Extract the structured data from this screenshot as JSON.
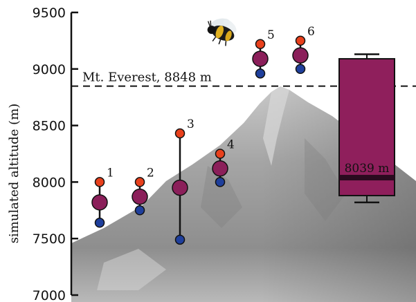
{
  "chart_data": {
    "type": "scatter",
    "title": "",
    "ylabel": "simulated altitude (m)",
    "xlabel": "",
    "ylim": [
      7000,
      9500
    ],
    "yticks": [
      7000,
      7500,
      8000,
      8500,
      9000,
      9500
    ],
    "grid": false,
    "reference_line": {
      "label": "Mt. Everest, 8848 m",
      "value": 8848
    },
    "series": [
      {
        "label": "1",
        "min": 7640,
        "mean": 7820,
        "max": 8000
      },
      {
        "label": "2",
        "min": 7750,
        "mean": 7870,
        "max": 8000
      },
      {
        "label": "3",
        "min": 7490,
        "mean": 7950,
        "max": 8430
      },
      {
        "label": "4",
        "min": 8000,
        "mean": 8120,
        "max": 8250
      },
      {
        "label": "5",
        "min": 8960,
        "mean": 9090,
        "max": 9220
      },
      {
        "label": "6",
        "min": 9000,
        "mean": 9120,
        "max": 9250
      }
    ],
    "boxplot": {
      "median": 8039,
      "median_label": "8039 m",
      "q1": 7880,
      "q3": 9090,
      "whisker_low": 7820,
      "whisker_high": 9130
    },
    "colors": {
      "max": "#e8401c",
      "mean": "#8b1f5a",
      "min": "#1f3f9c",
      "box": "#8f1f5c",
      "median": "#2a0b1f",
      "mountain": "#a0a0a0"
    },
    "background_image": "mountain-silhouette",
    "icon": "bumblebee-icon"
  }
}
